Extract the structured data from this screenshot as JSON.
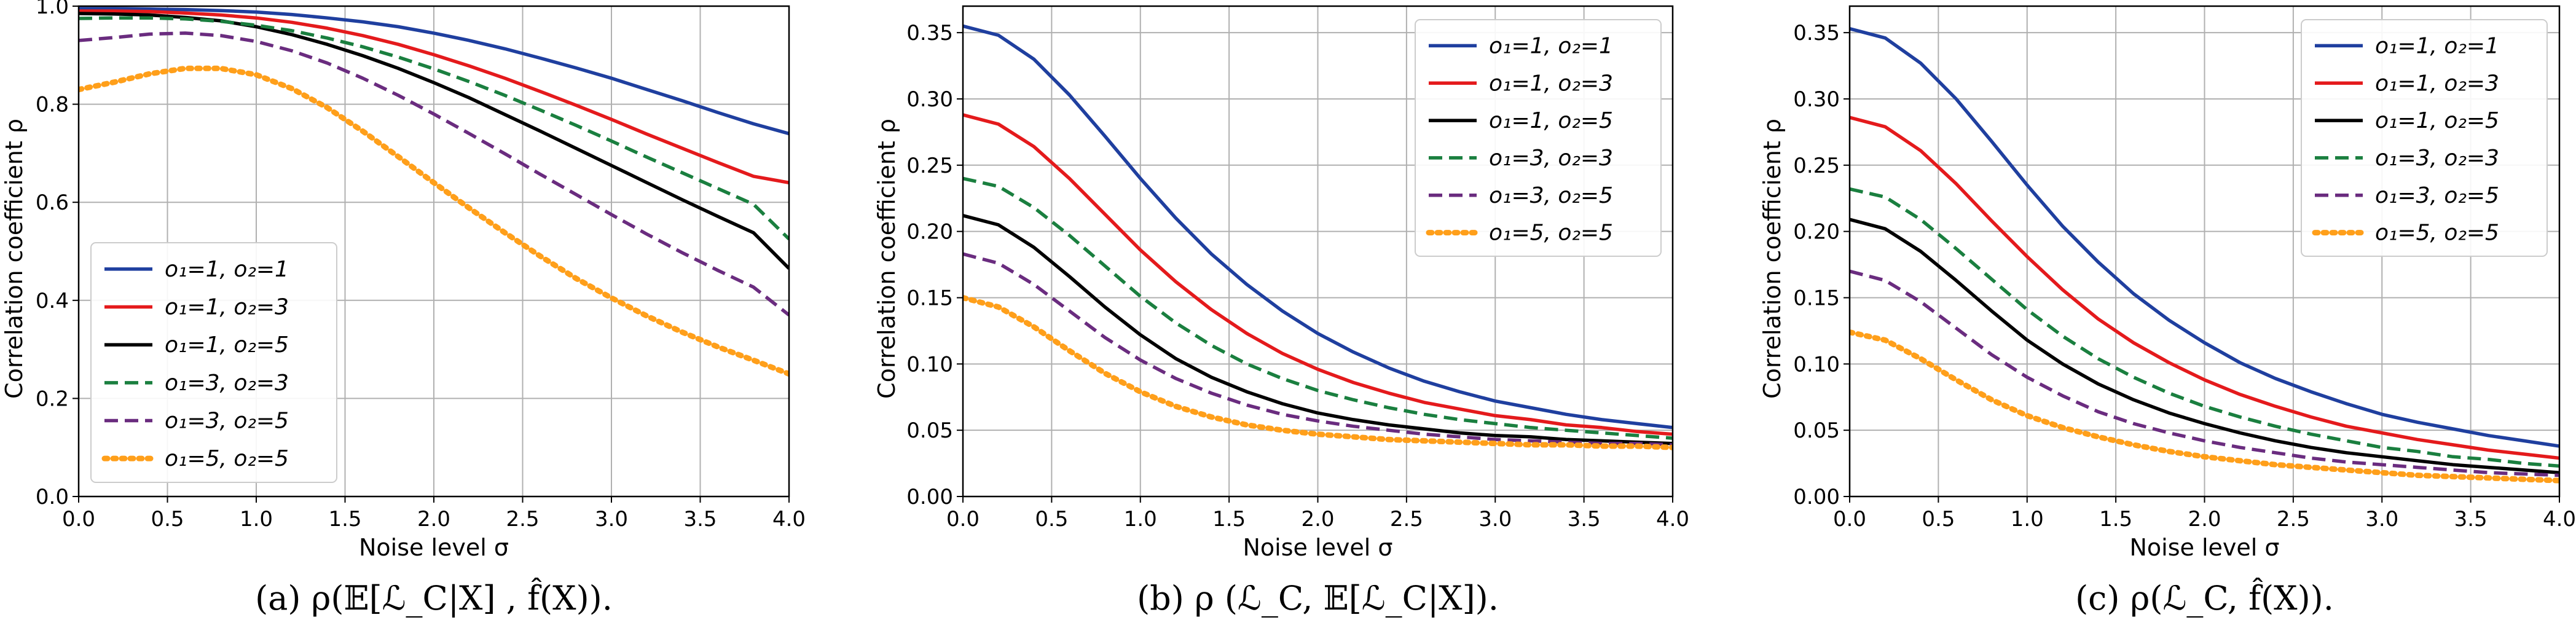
{
  "chart_data": [
    {
      "type": "line",
      "xlabel": "Noise level σ",
      "ylabel": "Correlation coefficient ρ",
      "xlim": [
        0.0,
        4.0
      ],
      "ylim": [
        0.0,
        1.0
      ],
      "xticks": [
        "0.0",
        "0.5",
        "1.0",
        "1.5",
        "2.0",
        "2.5",
        "3.0",
        "3.5",
        "4.0"
      ],
      "yticks": [
        "0.0",
        "0.2",
        "0.4",
        "0.6",
        "0.8",
        "1.0"
      ],
      "grid": true,
      "legend_position": "bottom-left",
      "caption": "(a) ρ(𝔼[ℒ_C|X] , f̂(X)).",
      "x": [
        0.0,
        0.2,
        0.4,
        0.6,
        0.8,
        1.0,
        1.2,
        1.4,
        1.6,
        1.8,
        2.0,
        2.2,
        2.4,
        2.6,
        2.8,
        3.0,
        3.2,
        3.4,
        3.6,
        3.8,
        4.0
      ],
      "series": [
        {
          "name": "o₁=1, o₂=1",
          "color": "#1f3f9f",
          "dash": "solid",
          "values": [
            0.995,
            0.995,
            0.994,
            0.993,
            0.991,
            0.988,
            0.983,
            0.976,
            0.968,
            0.958,
            0.945,
            0.93,
            0.913,
            0.894,
            0.874,
            0.853,
            0.83,
            0.807,
            0.783,
            0.76,
            0.74
          ]
        },
        {
          "name": "o₁=1, o₂=3",
          "color": "#e41a1c",
          "dash": "solid",
          "values": [
            0.99,
            0.99,
            0.989,
            0.986,
            0.982,
            0.976,
            0.967,
            0.955,
            0.94,
            0.922,
            0.901,
            0.878,
            0.853,
            0.826,
            0.798,
            0.769,
            0.739,
            0.71,
            0.681,
            0.653,
            0.64
          ]
        },
        {
          "name": "o₁=1, o₂=5",
          "color": "#000000",
          "dash": "solid",
          "values": [
            0.985,
            0.984,
            0.982,
            0.977,
            0.97,
            0.958,
            0.942,
            0.922,
            0.899,
            0.873,
            0.844,
            0.813,
            0.779,
            0.745,
            0.71,
            0.675,
            0.64,
            0.605,
            0.571,
            0.538,
            0.465
          ]
        },
        {
          "name": "o₁=3, o₂=3",
          "color": "#1a7f3f",
          "dash": "dashed",
          "values": [
            0.975,
            0.976,
            0.976,
            0.974,
            0.969,
            0.961,
            0.95,
            0.935,
            0.917,
            0.896,
            0.872,
            0.846,
            0.818,
            0.788,
            0.757,
            0.725,
            0.692,
            0.66,
            0.628,
            0.596,
            0.525
          ]
        },
        {
          "name": "o₁=3, o₂=5",
          "color": "#6a2c7f",
          "dash": "dashed",
          "values": [
            0.93,
            0.936,
            0.943,
            0.945,
            0.94,
            0.928,
            0.909,
            0.884,
            0.853,
            0.818,
            0.78,
            0.74,
            0.699,
            0.657,
            0.616,
            0.575,
            0.535,
            0.497,
            0.461,
            0.427,
            0.37
          ]
        },
        {
          "name": "o₁=5, o₂=5",
          "color": "#ff9f1a",
          "dash": "dotted",
          "values": [
            0.83,
            0.845,
            0.862,
            0.873,
            0.873,
            0.86,
            0.832,
            0.793,
            0.745,
            0.693,
            0.64,
            0.588,
            0.538,
            0.49,
            0.445,
            0.405,
            0.368,
            0.335,
            0.305,
            0.278,
            0.25
          ]
        }
      ]
    },
    {
      "type": "line",
      "xlabel": "Noise level σ",
      "ylabel": "Correlation coefficient ρ",
      "xlim": [
        0.0,
        4.0
      ],
      "ylim": [
        0.0,
        0.37
      ],
      "xticks": [
        "0.0",
        "0.5",
        "1.0",
        "1.5",
        "2.0",
        "2.5",
        "3.0",
        "3.5",
        "4.0"
      ],
      "yticks": [
        "0.00",
        "0.05",
        "0.10",
        "0.15",
        "0.20",
        "0.25",
        "0.30",
        "0.35"
      ],
      "grid": true,
      "legend_position": "top-right",
      "caption": "(b) ρ (ℒ_C, 𝔼[ℒ_C|X]).",
      "x": [
        0.0,
        0.2,
        0.4,
        0.6,
        0.8,
        1.0,
        1.2,
        1.4,
        1.6,
        1.8,
        2.0,
        2.2,
        2.4,
        2.6,
        2.8,
        3.0,
        3.2,
        3.4,
        3.6,
        3.8,
        4.0
      ],
      "series": [
        {
          "name": "o₁=1, o₂=1",
          "color": "#1f3f9f",
          "dash": "solid",
          "values": [
            0.355,
            0.348,
            0.33,
            0.303,
            0.272,
            0.24,
            0.21,
            0.183,
            0.16,
            0.14,
            0.123,
            0.109,
            0.097,
            0.087,
            0.079,
            0.072,
            0.067,
            0.062,
            0.058,
            0.055,
            0.052
          ]
        },
        {
          "name": "o₁=1, o₂=3",
          "color": "#e41a1c",
          "dash": "solid",
          "values": [
            0.288,
            0.281,
            0.264,
            0.24,
            0.213,
            0.186,
            0.162,
            0.141,
            0.123,
            0.108,
            0.096,
            0.086,
            0.078,
            0.071,
            0.066,
            0.061,
            0.058,
            0.054,
            0.052,
            0.049,
            0.047
          ]
        },
        {
          "name": "o₁=1, o₂=5",
          "color": "#000000",
          "dash": "solid",
          "values": [
            0.212,
            0.205,
            0.188,
            0.166,
            0.143,
            0.122,
            0.104,
            0.09,
            0.079,
            0.07,
            0.063,
            0.058,
            0.054,
            0.051,
            0.048,
            0.046,
            0.045,
            0.043,
            0.042,
            0.041,
            0.04
          ]
        },
        {
          "name": "o₁=3, o₂=3",
          "color": "#1a7f3f",
          "dash": "dashed",
          "values": [
            0.24,
            0.234,
            0.218,
            0.197,
            0.174,
            0.151,
            0.131,
            0.114,
            0.1,
            0.089,
            0.08,
            0.073,
            0.067,
            0.062,
            0.058,
            0.055,
            0.052,
            0.05,
            0.048,
            0.046,
            0.044
          ]
        },
        {
          "name": "o₁=3, o₂=5",
          "color": "#6a2c7f",
          "dash": "dashed",
          "values": [
            0.183,
            0.176,
            0.16,
            0.14,
            0.12,
            0.103,
            0.089,
            0.078,
            0.069,
            0.062,
            0.057,
            0.053,
            0.05,
            0.047,
            0.045,
            0.043,
            0.042,
            0.041,
            0.04,
            0.04,
            0.039
          ]
        },
        {
          "name": "o₁=5, o₂=5",
          "color": "#ff9f1a",
          "dash": "dotted",
          "values": [
            0.15,
            0.143,
            0.128,
            0.11,
            0.093,
            0.079,
            0.068,
            0.06,
            0.054,
            0.05,
            0.047,
            0.045,
            0.043,
            0.042,
            0.041,
            0.04,
            0.039,
            0.039,
            0.038,
            0.038,
            0.037
          ]
        }
      ]
    },
    {
      "type": "line",
      "xlabel": "Noise level σ",
      "ylabel": "Correlation coefficient ρ",
      "xlim": [
        0.0,
        4.0
      ],
      "ylim": [
        0.0,
        0.37
      ],
      "xticks": [
        "0.0",
        "0.5",
        "1.0",
        "1.5",
        "2.0",
        "2.5",
        "3.0",
        "3.5",
        "4.0"
      ],
      "yticks": [
        "0.00",
        "0.05",
        "0.10",
        "0.15",
        "0.20",
        "0.25",
        "0.30",
        "0.35"
      ],
      "grid": true,
      "legend_position": "top-right",
      "caption": "(c) ρ(ℒ_C, f̂(X)).",
      "x": [
        0.0,
        0.2,
        0.4,
        0.6,
        0.8,
        1.0,
        1.2,
        1.4,
        1.6,
        1.8,
        2.0,
        2.2,
        2.4,
        2.6,
        2.8,
        3.0,
        3.2,
        3.4,
        3.6,
        3.8,
        4.0
      ],
      "series": [
        {
          "name": "o₁=1, o₂=1",
          "color": "#1f3f9f",
          "dash": "solid",
          "values": [
            0.353,
            0.346,
            0.327,
            0.3,
            0.268,
            0.235,
            0.204,
            0.177,
            0.153,
            0.133,
            0.116,
            0.101,
            0.089,
            0.079,
            0.07,
            0.062,
            0.056,
            0.051,
            0.046,
            0.042,
            0.038
          ]
        },
        {
          "name": "o₁=1, o₂=3",
          "color": "#e41a1c",
          "dash": "solid",
          "values": [
            0.286,
            0.279,
            0.261,
            0.236,
            0.208,
            0.181,
            0.156,
            0.134,
            0.116,
            0.101,
            0.088,
            0.077,
            0.068,
            0.06,
            0.053,
            0.048,
            0.043,
            0.039,
            0.035,
            0.032,
            0.029
          ]
        },
        {
          "name": "o₁=1, o₂=5",
          "color": "#000000",
          "dash": "solid",
          "values": [
            0.209,
            0.202,
            0.185,
            0.163,
            0.14,
            0.118,
            0.1,
            0.085,
            0.073,
            0.063,
            0.055,
            0.048,
            0.042,
            0.037,
            0.033,
            0.03,
            0.027,
            0.024,
            0.022,
            0.02,
            0.018
          ]
        },
        {
          "name": "o₁=3, o₂=3",
          "color": "#1a7f3f",
          "dash": "dashed",
          "values": [
            0.232,
            0.226,
            0.209,
            0.187,
            0.164,
            0.141,
            0.121,
            0.104,
            0.09,
            0.078,
            0.068,
            0.06,
            0.053,
            0.047,
            0.042,
            0.037,
            0.034,
            0.03,
            0.028,
            0.025,
            0.023
          ]
        },
        {
          "name": "o₁=3, o₂=5",
          "color": "#6a2c7f",
          "dash": "dashed",
          "values": [
            0.17,
            0.163,
            0.147,
            0.127,
            0.107,
            0.09,
            0.076,
            0.064,
            0.055,
            0.048,
            0.042,
            0.037,
            0.033,
            0.029,
            0.026,
            0.024,
            0.022,
            0.02,
            0.018,
            0.017,
            0.016
          ]
        },
        {
          "name": "o₁=5, o₂=5",
          "color": "#ff9f1a",
          "dash": "dotted",
          "values": [
            0.124,
            0.118,
            0.104,
            0.088,
            0.073,
            0.061,
            0.052,
            0.045,
            0.039,
            0.034,
            0.03,
            0.027,
            0.024,
            0.022,
            0.02,
            0.018,
            0.016,
            0.015,
            0.014,
            0.013,
            0.012
          ]
        }
      ]
    }
  ]
}
